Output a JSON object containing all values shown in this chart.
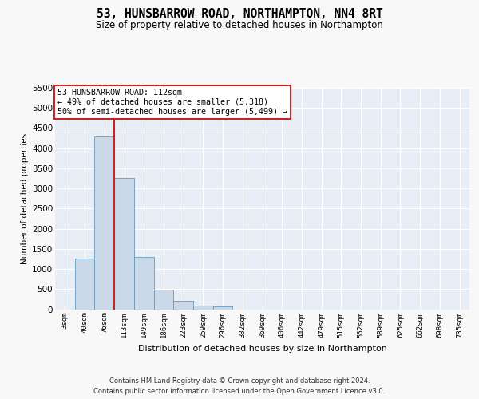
{
  "title1": "53, HUNSBARROW ROAD, NORTHAMPTON, NN4 8RT",
  "title2": "Size of property relative to detached houses in Northampton",
  "xlabel": "Distribution of detached houses by size in Northampton",
  "ylabel": "Number of detached properties",
  "footnote1": "Contains HM Land Registry data © Crown copyright and database right 2024.",
  "footnote2": "Contains public sector information licensed under the Open Government Licence v3.0.",
  "bin_labels": [
    "3sqm",
    "40sqm",
    "76sqm",
    "113sqm",
    "149sqm",
    "186sqm",
    "223sqm",
    "259sqm",
    "296sqm",
    "332sqm",
    "369sqm",
    "406sqm",
    "442sqm",
    "479sqm",
    "515sqm",
    "552sqm",
    "589sqm",
    "625sqm",
    "662sqm",
    "698sqm",
    "735sqm"
  ],
  "bar_heights": [
    0,
    1250,
    4300,
    3270,
    1290,
    490,
    200,
    90,
    60,
    0,
    0,
    0,
    0,
    0,
    0,
    0,
    0,
    0,
    0,
    0,
    0
  ],
  "bar_color": "#c9d9ea",
  "bar_edge_color": "#6699bb",
  "vline_x_idx": 3,
  "vline_color": "#cc2222",
  "annotation_line1": "53 HUNSBARROW ROAD: 112sqm",
  "annotation_line2": "← 49% of detached houses are smaller (5,318)",
  "annotation_line3": "50% of semi-detached houses are larger (5,499) →",
  "annotation_box_facecolor": "#ffffff",
  "annotation_box_edgecolor": "#cc2222",
  "ylim_max": 5500,
  "yticks": [
    0,
    500,
    1000,
    1500,
    2000,
    2500,
    3000,
    3500,
    4000,
    4500,
    5000,
    5500
  ],
  "fig_bg": "#f8f8f8",
  "ax_bg": "#e8eef5",
  "title1_fontsize": 10.5,
  "title2_fontsize": 8.5
}
